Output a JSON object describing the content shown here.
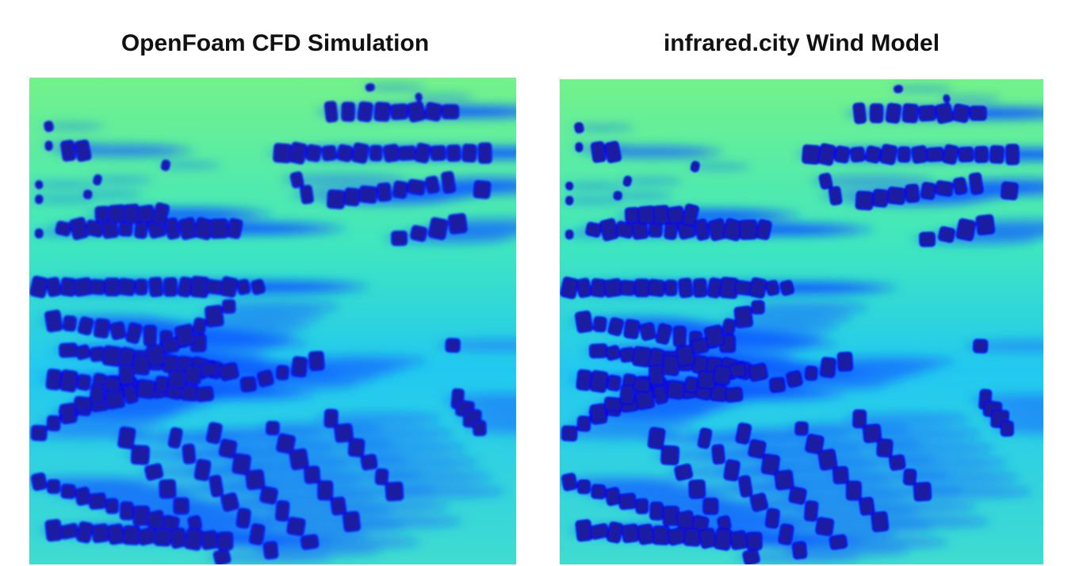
{
  "panels": [
    {
      "title": "OpenFoam CFD Simulation"
    },
    {
      "title": "infrared.city Wind Model"
    }
  ]
}
